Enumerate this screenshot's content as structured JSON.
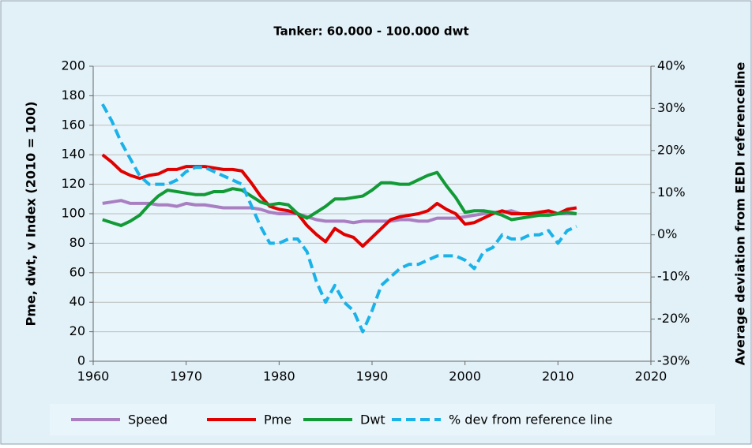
{
  "chart_data": {
    "type": "line",
    "title": "Tanker: 60.000 - 100.000 dwt",
    "ylabel": "Pme, dwt, v Index (2010 = 100)",
    "y2label": "Average deviation from EEDI referenceline",
    "x": [
      1961,
      1962,
      1963,
      1964,
      1965,
      1966,
      1967,
      1968,
      1969,
      1970,
      1971,
      1972,
      1973,
      1974,
      1975,
      1976,
      1977,
      1978,
      1979,
      1980,
      1981,
      1982,
      1983,
      1984,
      1985,
      1986,
      1987,
      1988,
      1989,
      1990,
      1991,
      1992,
      1993,
      1994,
      1995,
      1996,
      1997,
      1998,
      1999,
      2000,
      2001,
      2002,
      2003,
      2004,
      2005,
      2006,
      2007,
      2008,
      2009,
      2010,
      2011,
      2012
    ],
    "xlim": [
      1960,
      2020
    ],
    "xticks": [
      1960,
      1970,
      1980,
      1990,
      2000,
      2010,
      2020
    ],
    "ylim": [
      0,
      200
    ],
    "yticks": [
      0,
      20,
      40,
      60,
      80,
      100,
      120,
      140,
      160,
      180,
      200
    ],
    "y2lim": [
      -30,
      40
    ],
    "y2ticks": [
      {
        "value": -30,
        "label": "-30%"
      },
      {
        "value": -20,
        "label": "-20%"
      },
      {
        "value": -10,
        "label": "-10%"
      },
      {
        "value": 0,
        "label": "0%"
      },
      {
        "value": 10,
        "label": "10%"
      },
      {
        "value": 20,
        "label": "20%"
      },
      {
        "value": 30,
        "label": "30%"
      },
      {
        "value": 40,
        "label": "40%"
      }
    ],
    "grid": true,
    "legend": "bottom",
    "series": [
      {
        "name": "Speed",
        "color": "#a97fc2",
        "values": [
          107,
          108,
          109,
          107,
          107,
          107,
          106,
          106,
          105,
          107,
          106,
          106,
          105,
          104,
          104,
          104,
          104,
          103,
          101,
          100,
          100,
          100,
          98,
          96,
          95,
          95,
          95,
          94,
          95,
          95,
          95,
          95,
          96,
          96,
          95,
          95,
          97,
          97,
          97,
          98,
          99,
          100,
          101,
          101,
          102,
          100,
          100,
          100,
          100,
          100,
          100,
          100
        ]
      },
      {
        "name": "Pme",
        "color": "#e00000",
        "values": [
          140,
          135,
          129,
          126,
          124,
          126,
          127,
          130,
          130,
          132,
          132,
          132,
          131,
          130,
          130,
          129,
          121,
          112,
          105,
          103,
          102,
          100,
          92,
          86,
          81,
          90,
          86,
          84,
          78,
          84,
          90,
          96,
          98,
          99,
          100,
          102,
          107,
          103,
          100,
          93,
          94,
          97,
          100,
          102,
          100,
          100,
          100,
          101,
          102,
          100,
          103,
          104
        ]
      },
      {
        "name": "Dwt",
        "color": "#119a35",
        "values": [
          96,
          94,
          92,
          95,
          99,
          106,
          112,
          116,
          115,
          114,
          113,
          113,
          115,
          115,
          117,
          116,
          112,
          108,
          106,
          107,
          106,
          100,
          97,
          101,
          105,
          110,
          110,
          111,
          112,
          116,
          121,
          121,
          120,
          120,
          123,
          126,
          128,
          119,
          111,
          101,
          102,
          102,
          101,
          99,
          96,
          97,
          98,
          99,
          99,
          100,
          101,
          100
        ]
      },
      {
        "name": "% dev from reference line",
        "color": "#1ab2e8",
        "dashed": true,
        "axis": "y2",
        "values": [
          31,
          27,
          22,
          18,
          14,
          12,
          12,
          12,
          13,
          15,
          16,
          16,
          15,
          14,
          13,
          12,
          7,
          2,
          -2,
          -2,
          -1,
          -1,
          -4,
          -11,
          -16,
          -12,
          -16,
          -18,
          -23,
          -18,
          -12,
          -10,
          -8,
          -7,
          -7,
          -6,
          -5,
          -5,
          -5,
          -6,
          -8,
          -4,
          -3,
          0,
          -1,
          -1,
          0,
          0,
          1,
          -2,
          1,
          2
        ]
      }
    ]
  }
}
